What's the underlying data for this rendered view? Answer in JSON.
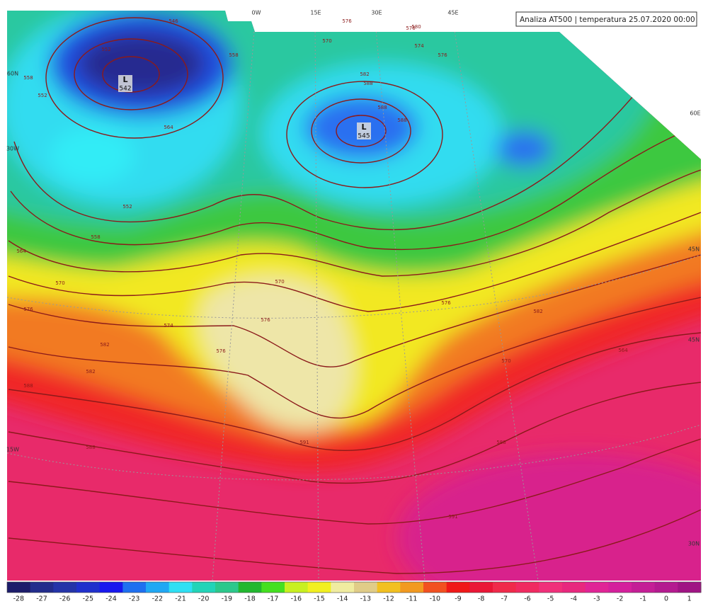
{
  "title": "Analiza AT500 | temperatura 25.07.2020 00:00",
  "lon_labels": [
    "0W",
    "15E",
    "30E",
    "45E",
    "60E"
  ],
  "lat_labels": [
    "60N",
    "30W",
    "45N",
    "45N",
    "15W",
    "30N"
  ],
  "lows": [
    {
      "letter": "L",
      "value": "542"
    },
    {
      "letter": "L",
      "value": "545"
    }
  ],
  "contour_labels": [
    "546",
    "552",
    "558",
    "552",
    "564",
    "558",
    "570",
    "576",
    "576",
    "574",
    "576",
    "580",
    "582",
    "588",
    "588",
    "588",
    "552",
    "558",
    "564",
    "570",
    "576",
    "582",
    "588",
    "570",
    "576",
    "574",
    "576",
    "582",
    "588",
    "591",
    "591",
    "588",
    "582",
    "576",
    "570",
    "564"
  ],
  "legend": {
    "values": [
      -28,
      -27,
      -26,
      -25,
      -24,
      -23,
      -22,
      -21,
      -20,
      -19,
      -18,
      -17,
      -16,
      -15,
      -14,
      -13,
      -12,
      -11,
      -10,
      -9,
      -8,
      -7,
      -6,
      -5,
      -4,
      -3,
      -2,
      -1,
      0,
      1
    ],
    "colors": [
      "#1c1c6a",
      "#222c8c",
      "#2434a8",
      "#2030cc",
      "#1818ee",
      "#1e70f0",
      "#20a8f4",
      "#2ee0f4",
      "#22d4b8",
      "#2cc88c",
      "#22b830",
      "#44e020",
      "#c8f020",
      "#f2f020",
      "#f0eca0",
      "#e0cc88",
      "#f2c020",
      "#f29a20",
      "#f25020",
      "#f01818",
      "#ea1636",
      "#f02a4a",
      "#f02a60",
      "#f0307a",
      "#e8287e",
      "#e02496",
      "#d4209c",
      "#c41e96",
      "#b41a90",
      "#a01484"
    ]
  }
}
